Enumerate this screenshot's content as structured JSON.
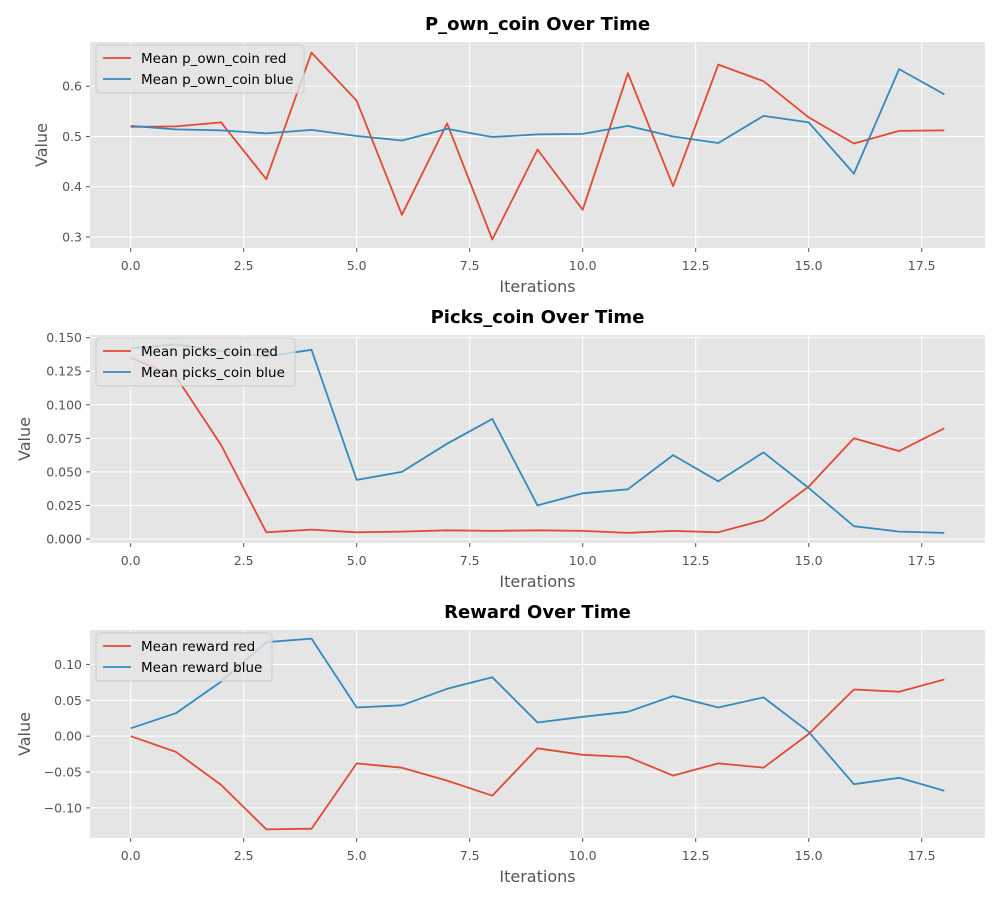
{
  "chart_data": [
    {
      "type": "line",
      "title": "P_own_coin Over Time",
      "xlabel": "Iterations",
      "ylabel": "Value",
      "xlim": [
        -0.9,
        18.9
      ],
      "ylim": [
        0.278,
        0.688
      ],
      "xticks": [
        0.0,
        2.5,
        5.0,
        7.5,
        10.0,
        12.5,
        15.0,
        17.5
      ],
      "xtick_labels": [
        "0.0",
        "2.5",
        "5.0",
        "7.5",
        "10.0",
        "12.5",
        "15.0",
        "17.5"
      ],
      "yticks": [
        0.3,
        0.4,
        0.5,
        0.6
      ],
      "ytick_labels": [
        "0.3",
        "0.4",
        "0.5",
        "0.6"
      ],
      "grid": true,
      "legend_position": "upper-left",
      "x": [
        0,
        1,
        2,
        3,
        4,
        5,
        6,
        7,
        8,
        9,
        10,
        11,
        12,
        13,
        14,
        15,
        16,
        17,
        18
      ],
      "series": [
        {
          "name": "Mean p_own_coin red",
          "color": "#e24a33",
          "values": [
            0.519,
            0.52,
            0.528,
            0.415,
            0.667,
            0.571,
            0.344,
            0.526,
            0.295,
            0.474,
            0.354,
            0.626,
            0.401,
            0.643,
            0.61,
            0.538,
            0.486,
            0.511,
            0.512
          ]
        },
        {
          "name": "Mean p_own_coin blue",
          "color": "#348abd",
          "values": [
            0.521,
            0.514,
            0.512,
            0.506,
            0.513,
            0.501,
            0.492,
            0.515,
            0.499,
            0.504,
            0.505,
            0.521,
            0.5,
            0.487,
            0.541,
            0.528,
            0.426,
            0.634,
            0.584
          ]
        }
      ]
    },
    {
      "type": "line",
      "title": "Picks_coin Over Time",
      "xlabel": "Iterations",
      "ylabel": "Value",
      "xlim": [
        -0.9,
        18.9
      ],
      "ylim": [
        -0.003,
        0.152
      ],
      "xticks": [
        0.0,
        2.5,
        5.0,
        7.5,
        10.0,
        12.5,
        15.0,
        17.5
      ],
      "xtick_labels": [
        "0.0",
        "2.5",
        "5.0",
        "7.5",
        "10.0",
        "12.5",
        "15.0",
        "17.5"
      ],
      "yticks": [
        0.0,
        0.025,
        0.05,
        0.075,
        0.1,
        0.125,
        0.15
      ],
      "ytick_labels": [
        "0.000",
        "0.025",
        "0.050",
        "0.075",
        "0.100",
        "0.125",
        "0.150"
      ],
      "grid": true,
      "legend_position": "upper-left",
      "x": [
        0,
        1,
        2,
        3,
        4,
        5,
        6,
        7,
        8,
        9,
        10,
        11,
        12,
        13,
        14,
        15,
        16,
        17,
        18
      ],
      "series": [
        {
          "name": "Mean picks_coin red",
          "color": "#e24a33",
          "values": [
            0.135,
            0.121,
            0.07,
            0.005,
            0.007,
            0.005,
            0.0055,
            0.0065,
            0.006,
            0.0065,
            0.006,
            0.0045,
            0.006,
            0.005,
            0.014,
            0.039,
            0.075,
            0.0655,
            0.0825
          ]
        },
        {
          "name": "Mean picks_coin blue",
          "color": "#348abd",
          "values": [
            0.142,
            0.145,
            0.14,
            0.136,
            0.141,
            0.044,
            0.05,
            0.071,
            0.0895,
            0.025,
            0.034,
            0.037,
            0.0625,
            0.043,
            0.0645,
            0.038,
            0.0095,
            0.0055,
            0.0045
          ]
        }
      ]
    },
    {
      "type": "line",
      "title": "Reward Over Time",
      "xlabel": "Iterations",
      "ylabel": "Value",
      "xlim": [
        -0.9,
        18.9
      ],
      "ylim": [
        -0.142,
        0.148
      ],
      "xticks": [
        0.0,
        2.5,
        5.0,
        7.5,
        10.0,
        12.5,
        15.0,
        17.5
      ],
      "xtick_labels": [
        "0.0",
        "2.5",
        "5.0",
        "7.5",
        "10.0",
        "12.5",
        "15.0",
        "17.5"
      ],
      "yticks": [
        -0.1,
        -0.05,
        0.0,
        0.05,
        0.1
      ],
      "ytick_labels": [
        "−0.10",
        "−0.05",
        "0.00",
        "0.05",
        "0.10"
      ],
      "grid": true,
      "legend_position": "upper-left",
      "x": [
        0,
        1,
        2,
        3,
        4,
        5,
        6,
        7,
        8,
        9,
        10,
        11,
        12,
        13,
        14,
        15,
        16,
        17,
        18
      ],
      "series": [
        {
          "name": "Mean reward red",
          "color": "#e24a33",
          "values": [
            0.0,
            -0.022,
            -0.068,
            -0.13,
            -0.129,
            -0.038,
            -0.044,
            -0.062,
            -0.083,
            -0.017,
            -0.026,
            -0.029,
            -0.055,
            -0.038,
            -0.044,
            0.003,
            0.065,
            0.062,
            0.079
          ]
        },
        {
          "name": "Mean reward blue",
          "color": "#348abd",
          "values": [
            0.011,
            0.032,
            0.076,
            0.131,
            0.136,
            0.04,
            0.043,
            0.066,
            0.082,
            0.019,
            0.027,
            0.034,
            0.056,
            0.04,
            0.054,
            0.006,
            -0.067,
            -0.058,
            -0.076
          ]
        }
      ]
    }
  ]
}
